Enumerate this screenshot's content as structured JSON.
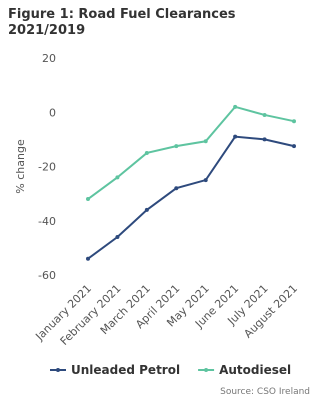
{
  "chart_data": {
    "type": "line",
    "title": "Figure 1: Road Fuel Clearances 2021/2019",
    "y_label": "% change",
    "categories": [
      "January 2021",
      "February 2021",
      "March 2021",
      "April 2021",
      "May 2021",
      "June 2021",
      "July 2021",
      "August 2021"
    ],
    "series": [
      {
        "name": "Unleaded Petrol",
        "color": "#2e4a7d",
        "values": [
          -54,
          -46,
          -36,
          -28,
          -25,
          -9,
          -10,
          -12.5
        ]
      },
      {
        "name": "Autodiesel",
        "color": "#5ec4a0",
        "values": [
          -32,
          -24,
          -15,
          -12.5,
          -10.7,
          2,
          -1,
          -3.3
        ]
      }
    ],
    "ylim": [
      -60,
      20
    ],
    "yticks": [
      -60,
      -40,
      -20,
      0,
      20
    ],
    "source": "Source: CSO Ireland"
  }
}
